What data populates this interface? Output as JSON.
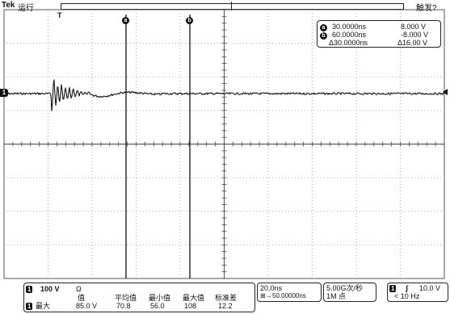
{
  "header": {
    "brand": "Tek",
    "run_state": "运行",
    "trigger_state": "触发?"
  },
  "cursors": {
    "a_label": "a",
    "b_label": "b",
    "a_time": "30.0000ns",
    "a_volt": "8.000 V",
    "b_time": "60.0000ns",
    "b_volt": "-8.000 V",
    "delta_time": "Δ30.0000ns",
    "delta_volt": "Δ16.00 V"
  },
  "markers": {
    "channel": "1",
    "trigger_top": "T"
  },
  "channel1": {
    "num": "1",
    "scale": "100 V",
    "impedance": "Ω"
  },
  "measurement": {
    "num": "1",
    "name": "最大",
    "headers": [
      "值",
      "平均值",
      "最小值",
      "最大值",
      "标准差"
    ],
    "values": [
      "85.0 V",
      "70.8",
      "56.0",
      "108",
      "12.2"
    ]
  },
  "timebase": {
    "scale": "20.0ns",
    "position": "50.00000ns"
  },
  "acquisition": {
    "rate": "5.00G次/秒",
    "record": "1M 点"
  },
  "trigger": {
    "num": "1",
    "level": "10.0 V",
    "filter": "< 10 Hz"
  },
  "colors": {
    "grid": "#9a9a9a",
    "trace": "#111111"
  }
}
